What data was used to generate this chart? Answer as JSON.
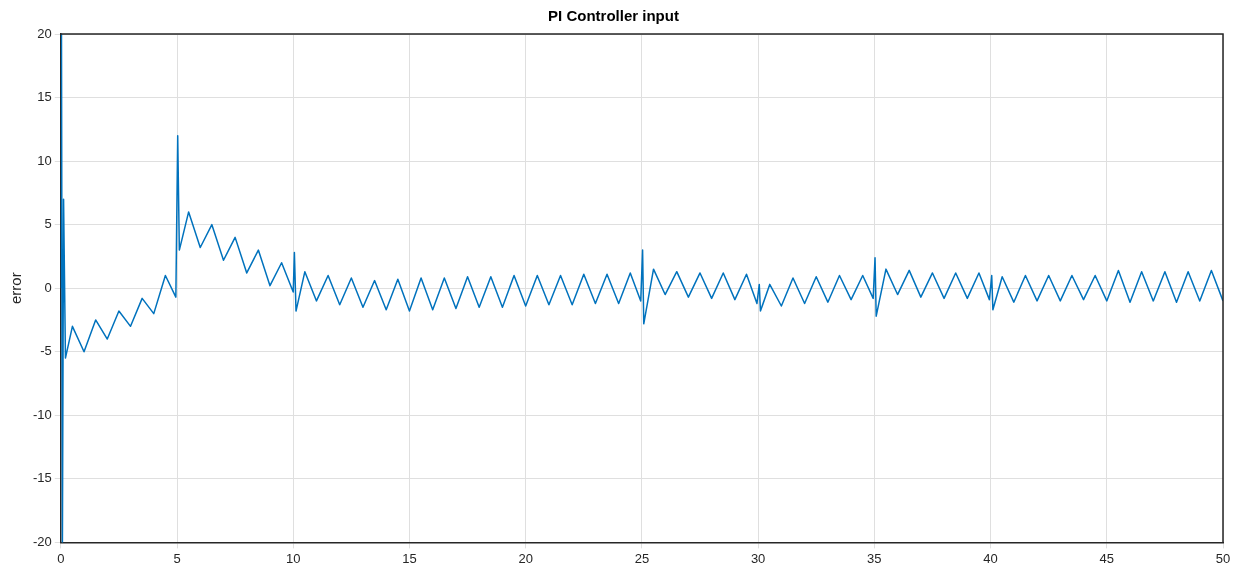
{
  "chart_data": {
    "type": "line",
    "title": "PI Controller input",
    "ylabel": "error",
    "xlim": [
      0,
      50
    ],
    "xticks": [
      0,
      5,
      10,
      15,
      20,
      25,
      30,
      35,
      40,
      45,
      50
    ],
    "ylim": [
      -20,
      20
    ],
    "yticks": [
      -20,
      -15,
      -10,
      -5,
      0,
      5,
      10,
      15,
      20
    ],
    "grid": true,
    "legend": false,
    "marker": "none",
    "line_style": "solid",
    "series": [
      {
        "color": "#0072bd",
        "x": [
          0,
          0.03,
          0.07,
          0.12,
          0.2,
          0.5,
          1.0,
          1.5,
          2.0,
          2.5,
          3.0,
          3.5,
          4.0,
          4.5,
          4.95,
          5.03,
          5.1,
          5.5,
          6.0,
          6.5,
          7.0,
          7.5,
          8.0,
          8.5,
          9.0,
          9.5,
          10.0,
          10.05,
          10.12,
          10.5,
          11.0,
          11.5,
          12.0,
          12.5,
          13.0,
          13.5,
          14.0,
          14.5,
          15.0,
          15.5,
          16.0,
          16.5,
          17.0,
          17.5,
          18.0,
          18.5,
          19.0,
          19.5,
          20.0,
          20.5,
          21.0,
          21.5,
          22.0,
          22.5,
          23.0,
          23.5,
          24.0,
          24.5,
          24.95,
          25.03,
          25.08,
          25.5,
          26.0,
          26.5,
          27.0,
          27.5,
          28.0,
          28.5,
          29.0,
          29.5,
          29.95,
          30.05,
          30.1,
          30.5,
          31.0,
          31.5,
          32.0,
          32.5,
          33.0,
          33.5,
          34.0,
          34.5,
          34.95,
          35.03,
          35.08,
          35.5,
          36.0,
          36.5,
          37.0,
          37.5,
          38.0,
          38.5,
          39.0,
          39.5,
          39.95,
          40.05,
          40.1,
          40.5,
          41.0,
          41.5,
          42.0,
          42.5,
          43.0,
          43.5,
          44.0,
          44.5,
          45.0,
          45.5,
          46.0,
          46.5,
          47.0,
          47.5,
          48.0,
          48.5,
          49.0,
          49.5,
          50.0
        ],
        "values": [
          0,
          20,
          -20,
          7,
          -5.5,
          -3,
          -5,
          -2.5,
          -4,
          -1.8,
          -3,
          -0.8,
          -2,
          1,
          -0.7,
          12,
          3,
          6,
          3.2,
          5,
          2.2,
          4,
          1.2,
          3,
          0.2,
          2,
          -0.3,
          2.8,
          -1.8,
          1.3,
          -1,
          1,
          -1.3,
          0.8,
          -1.5,
          0.6,
          -1.7,
          0.7,
          -1.8,
          0.8,
          -1.7,
          0.8,
          -1.6,
          0.9,
          -1.5,
          0.9,
          -1.5,
          1,
          -1.4,
          1,
          -1.3,
          1,
          -1.3,
          1.1,
          -1.2,
          1.1,
          -1.2,
          1.2,
          -1,
          3,
          -2.8,
          1.5,
          -0.5,
          1.3,
          -0.7,
          1.2,
          -0.8,
          1.2,
          -0.9,
          1.1,
          -1.2,
          0.3,
          -1.8,
          0.3,
          -1.4,
          0.8,
          -1.2,
          0.9,
          -1.1,
          1,
          -0.9,
          1,
          -0.8,
          2.4,
          -2.2,
          1.5,
          -0.5,
          1.4,
          -0.7,
          1.2,
          -0.8,
          1.2,
          -0.8,
          1.2,
          -0.9,
          1,
          -1.7,
          0.9,
          -1.1,
          1,
          -1,
          1,
          -1,
          1,
          -0.9,
          1,
          -1,
          1.4,
          -1.1,
          1.3,
          -1,
          1.3,
          -1.1,
          1.3,
          -1,
          1.4,
          -1
        ]
      }
    ]
  }
}
